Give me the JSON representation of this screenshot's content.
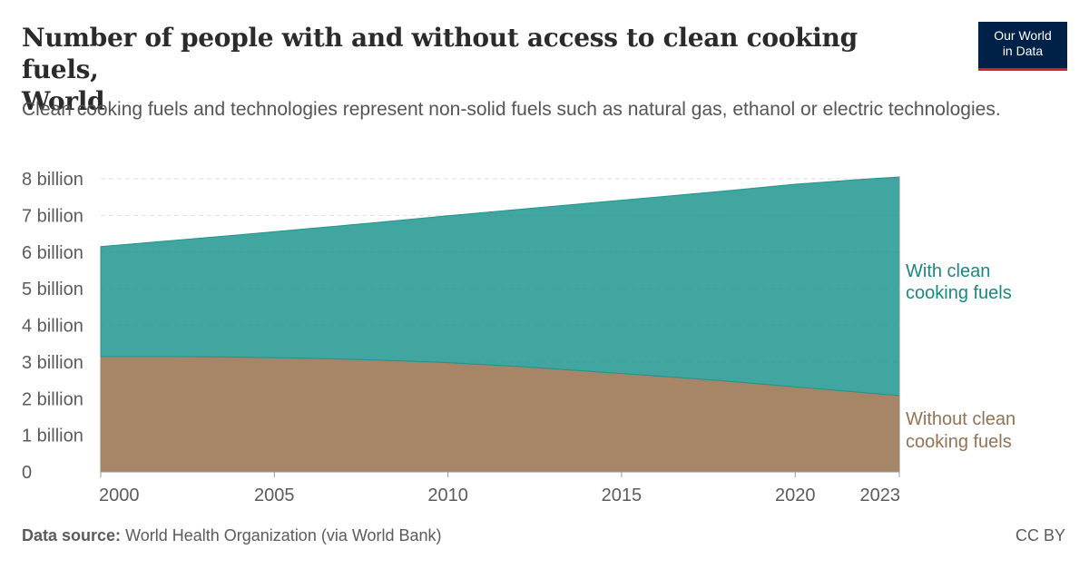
{
  "header": {
    "title_line1": "Number of people with and without access to clean cooking fuels,",
    "title_line2": "World",
    "subtitle": "Clean cooking fuels and technologies represent non-solid fuels such as natural gas, ethanol or electric technologies."
  },
  "logo": {
    "line1": "Our World",
    "line2": "in Data"
  },
  "footer": {
    "source_label": "Data source:",
    "source_text": "World Health Organization (via World Bank)",
    "license": "CC BY"
  },
  "chart_data": {
    "type": "area",
    "stacked": true,
    "title": "Number of people with and without access to clean cooking fuels, World",
    "xlim": [
      2000,
      2023
    ],
    "ylim": [
      0,
      8000000000
    ],
    "x_ticks": [
      "2000",
      "2005",
      "2010",
      "2015",
      "2020",
      "2023"
    ],
    "y_ticks": [
      "0",
      "1 billion",
      "2 billion",
      "3 billion",
      "4 billion",
      "5 billion",
      "6 billion",
      "7 billion",
      "8 billion"
    ],
    "grid": "horizontal-dashed",
    "x": [
      2000,
      2002,
      2004,
      2006,
      2008,
      2010,
      2012,
      2014,
      2016,
      2018,
      2020,
      2022,
      2023
    ],
    "series": [
      {
        "name": "Without clean cooking fuels",
        "label_lines": [
          "Without clean",
          "cooking fuels"
        ],
        "color": "#a2805f",
        "values": [
          3150000000,
          3150000000,
          3130000000,
          3100000000,
          3050000000,
          2980000000,
          2880000000,
          2750000000,
          2620000000,
          2480000000,
          2320000000,
          2160000000,
          2080000000
        ]
      },
      {
        "name": "With clean cooking fuels",
        "label_lines": [
          "With clean",
          "cooking fuels"
        ],
        "color": "#1f968e",
        "values": [
          3000000000,
          3160000000,
          3340000000,
          3540000000,
          3760000000,
          4010000000,
          4280000000,
          4580000000,
          4880000000,
          5190000000,
          5530000000,
          5830000000,
          5970000000
        ]
      }
    ]
  }
}
